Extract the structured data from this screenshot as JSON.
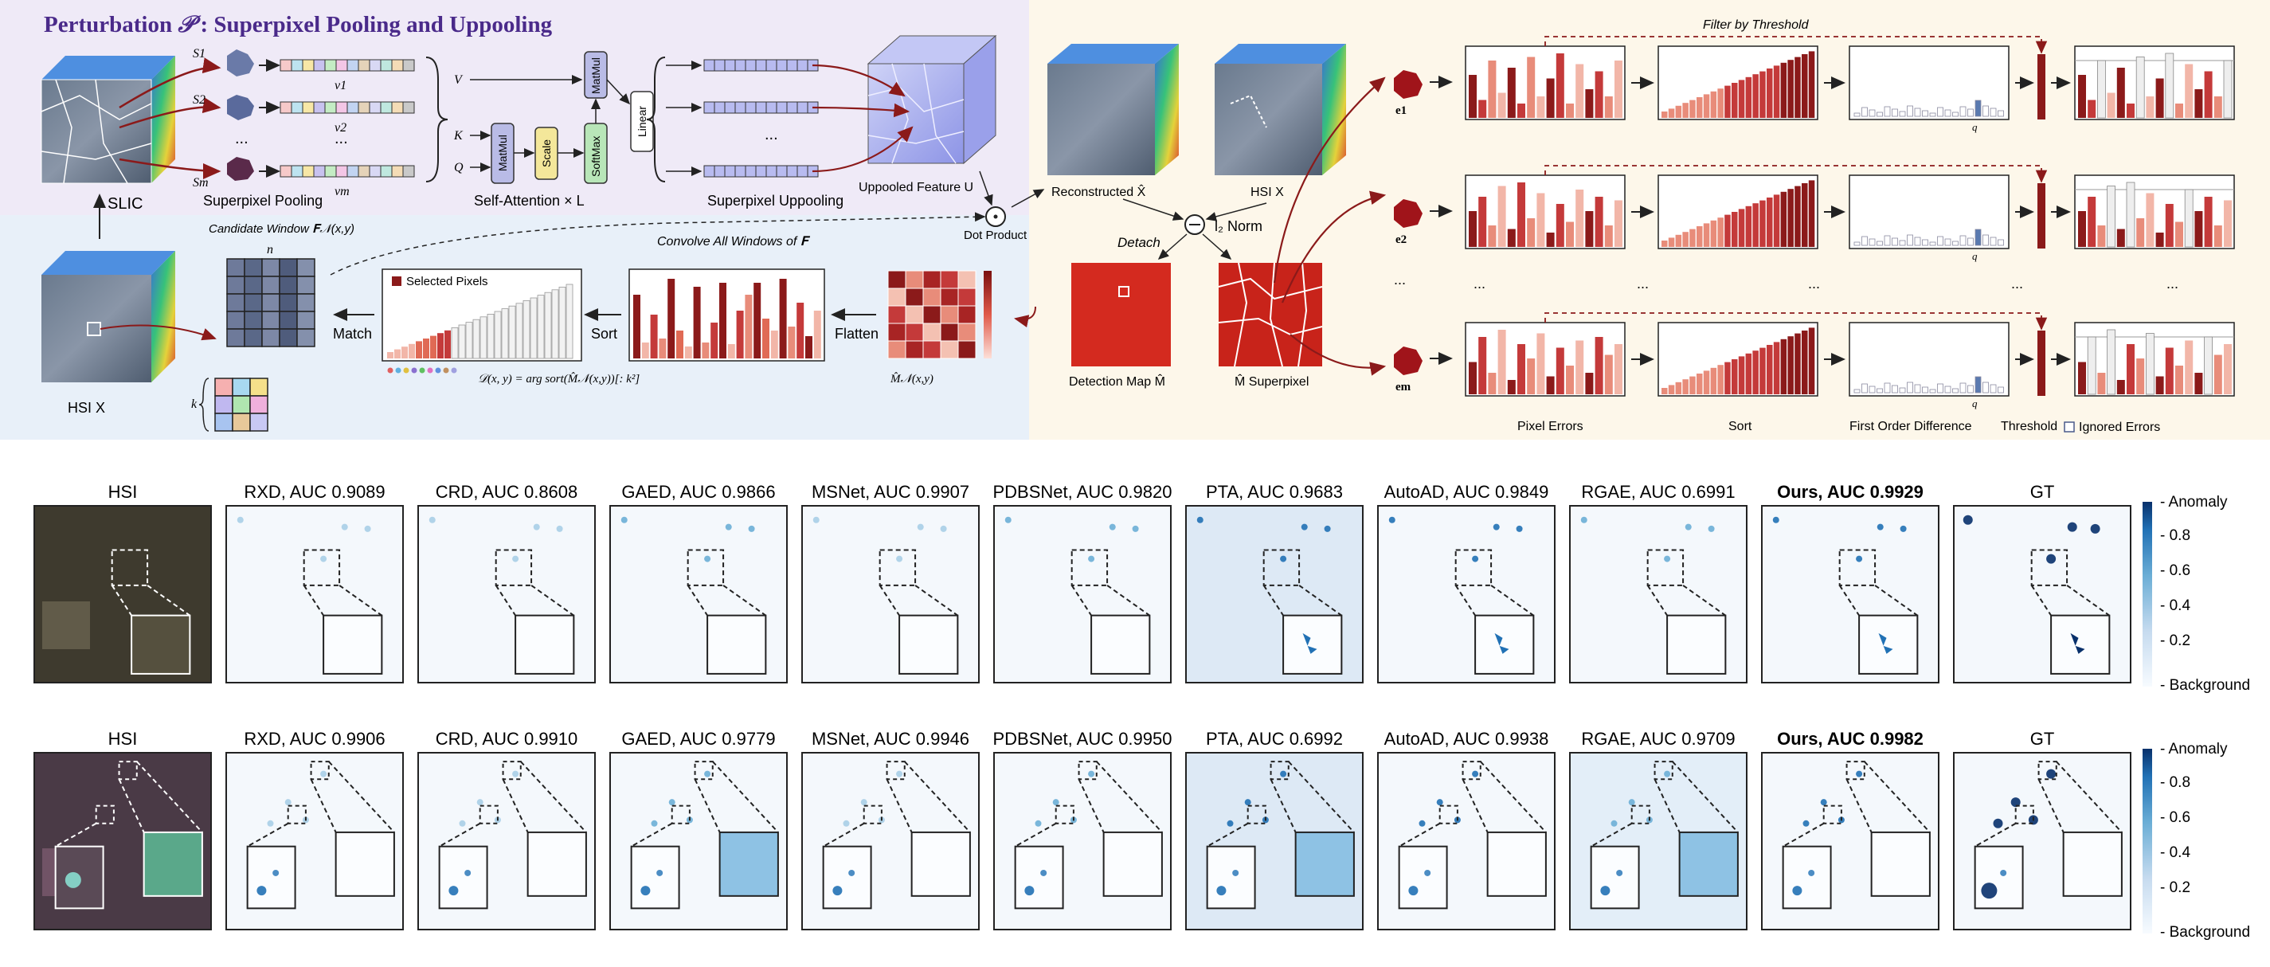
{
  "top": {
    "title": "Perturbation",
    "title_symbol": "𝒫",
    "title_rest": ": Superpixel Pooling and Uppooling",
    "labels": {
      "slic": "SLIC",
      "superpixel_pooling": "Superpixel  Pooling",
      "self_attention": "Self-Attention × L",
      "superpixel_uppooling": "Superpixel  Uppooling",
      "uppooled_feature": "Uppooled Feature U",
      "dot_product": "Dot Product",
      "candidate_window": "Candidate Window  𝐅𝒩(x,y)",
      "convolve": "Convolve All Windows of  𝐅",
      "n": "n",
      "k": "k",
      "match": "Match",
      "sort": "Sort",
      "flatten": "Flatten",
      "selected_pixels": "Selected Pixels",
      "formula": "𝒟(x, y) = arg sort(M̂𝒩(x,y))[: k²]",
      "m_hat_window": "M̂𝒩(x,y)",
      "hsi_x": "HSI X",
      "reconstructed": "Reconstructed X̂",
      "hsi_x2": "HSI X",
      "detach": "Detach",
      "l2_norm": "l₂ Norm",
      "detection_map": "Detection Map M̂",
      "m_superpixel": "M̂ Superpixel",
      "filter_by_threshold": "Filter by Threshold",
      "pixel_errors": "Pixel Errors",
      "sort2": "Sort",
      "first_order_difference": "First Order Difference",
      "threshold": "Threshold",
      "ignored_errors": "Ignored Errors",
      "q": "q",
      "dots": "...",
      "v_label": "V",
      "k_label": "K",
      "q_label": "Q",
      "matmul": "MatMul",
      "scale": "Scale",
      "softmax": "SoftMax",
      "linear": "Linear",
      "s1": "S1",
      "s2": "S2",
      "sm": "Sm",
      "v1": "v1",
      "v2": "v2",
      "vm": "vm",
      "e1": "e1",
      "e2": "e2",
      "em": "em",
      "colorbar_ticks": [
        "0.8",
        "0.6",
        "0.4",
        "0.2"
      ]
    },
    "colors": {
      "purple_panel": "#efeaf7",
      "blue_panel": "#e8f0f9",
      "cream_panel": "#fdf7ea",
      "bar_dark": "#8b1a1a",
      "bar_mid": "#c43a3a",
      "bar_light": "#e88c7a",
      "title": "#4a2a8a"
    }
  },
  "rows": [
    {
      "panels": [
        {
          "title": "HSI",
          "bold": false
        },
        {
          "title": "RXD, AUC 0.9089",
          "bold": false
        },
        {
          "title": "CRD, AUC 0.8608",
          "bold": false
        },
        {
          "title": "GAED, AUC 0.9866",
          "bold": false
        },
        {
          "title": "MSNet, AUC 0.9907",
          "bold": false
        },
        {
          "title": "PDBSNet, AUC 0.9820",
          "bold": false
        },
        {
          "title": "PTA, AUC 0.9683",
          "bold": false
        },
        {
          "title": "AutoAD, AUC 0.9849",
          "bold": false
        },
        {
          "title": "RGAE, AUC 0.6991",
          "bold": false
        },
        {
          "title": "Ours, AUC 0.9929",
          "bold": true
        },
        {
          "title": "GT",
          "bold": false
        }
      ],
      "colorbar": {
        "top": "Anomaly",
        "bottom": "Background",
        "ticks": [
          "0.8",
          "0.6",
          "0.4",
          "0.2"
        ]
      }
    },
    {
      "panels": [
        {
          "title": "HSI",
          "bold": false
        },
        {
          "title": "RXD, AUC 0.9906",
          "bold": false
        },
        {
          "title": "CRD, AUC 0.9910",
          "bold": false
        },
        {
          "title": "GAED, AUC 0.9779",
          "bold": false
        },
        {
          "title": "MSNet, AUC 0.9946",
          "bold": false
        },
        {
          "title": "PDBSNet, AUC 0.9950",
          "bold": false
        },
        {
          "title": "PTA, AUC 0.6992",
          "bold": false
        },
        {
          "title": "AutoAD, AUC 0.9938",
          "bold": false
        },
        {
          "title": "RGAE, AUC 0.9709",
          "bold": false
        },
        {
          "title": "Ours, AUC 0.9982",
          "bold": true
        },
        {
          "title": "GT",
          "bold": false
        }
      ],
      "colorbar": {
        "top": "Anomaly",
        "bottom": "Background",
        "ticks": [
          "0.8",
          "0.6",
          "0.4",
          "0.2"
        ]
      }
    }
  ]
}
